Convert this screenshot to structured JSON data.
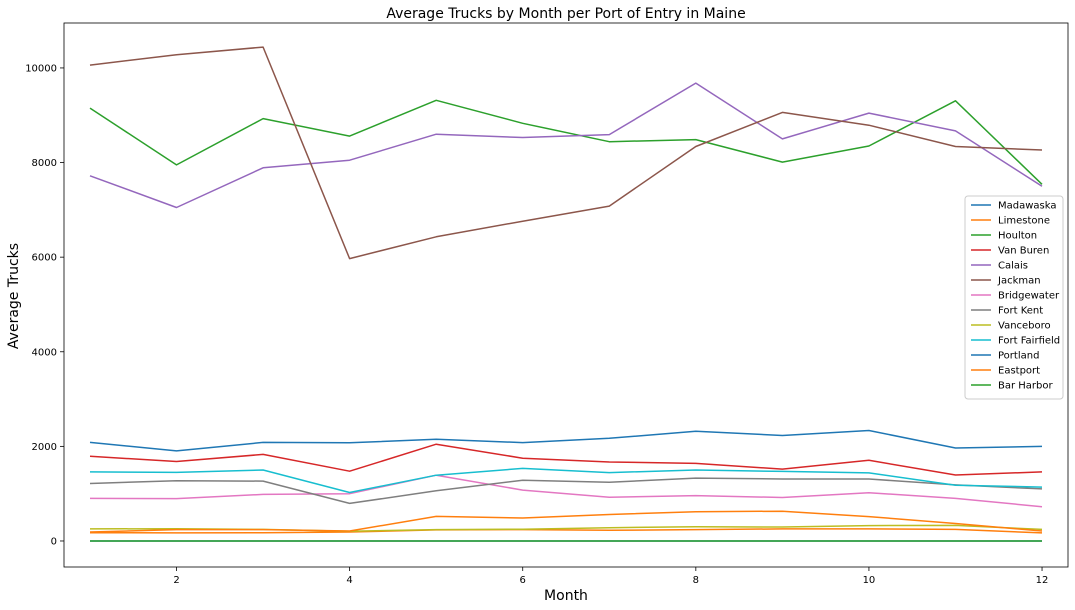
{
  "chart_data": {
    "type": "line",
    "title": "Average Trucks by Month per Port of Entry in Maine",
    "xlabel": "Month",
    "ylabel": "Average Trucks",
    "xlim": [
      0.7,
      12.3
    ],
    "ylim": [
      -550,
      10950
    ],
    "xticks": [
      2,
      4,
      6,
      8,
      10,
      12
    ],
    "yticks": [
      0,
      2000,
      4000,
      6000,
      8000,
      10000
    ],
    "grid": false,
    "legend_position": "center-right",
    "x": [
      1,
      2,
      3,
      4,
      5,
      6,
      7,
      8,
      9,
      10,
      11,
      12
    ],
    "series": [
      {
        "name": "Madawaska",
        "color": "#1f77b4",
        "values": [
          2085,
          1905,
          2085,
          2075,
          2150,
          2080,
          2170,
          2320,
          2230,
          2335,
          1965,
          2000
        ]
      },
      {
        "name": "Limestone",
        "color": "#ff7f0e",
        "values": [
          175,
          170,
          175,
          190,
          235,
          240,
          225,
          240,
          255,
          255,
          245,
          170
        ]
      },
      {
        "name": "Houlton",
        "color": "#2ca02c",
        "values": [
          9150,
          7950,
          8930,
          8560,
          9315,
          8830,
          8440,
          8485,
          8010,
          8350,
          9305,
          7540
        ]
      },
      {
        "name": "Van Buren",
        "color": "#d62728",
        "values": [
          1790,
          1680,
          1830,
          1475,
          2045,
          1750,
          1670,
          1640,
          1520,
          1705,
          1395,
          1460
        ]
      },
      {
        "name": "Calais",
        "color": "#9467bd",
        "values": [
          7720,
          7050,
          7890,
          8050,
          8600,
          8530,
          8590,
          9680,
          8500,
          9045,
          8670,
          7500
        ]
      },
      {
        "name": "Jackman",
        "color": "#8c564b",
        "values": [
          10060,
          10280,
          10440,
          5970,
          6430,
          6760,
          7080,
          8340,
          9060,
          8790,
          8340,
          8265
        ]
      },
      {
        "name": "Bridgewater",
        "color": "#e377c2",
        "values": [
          900,
          895,
          985,
          1000,
          1390,
          1075,
          925,
          960,
          920,
          1020,
          900,
          725
        ]
      },
      {
        "name": "Fort Kent",
        "color": "#7f7f7f",
        "values": [
          1215,
          1275,
          1265,
          795,
          1060,
          1285,
          1240,
          1330,
          1310,
          1310,
          1185,
          1100
        ]
      },
      {
        "name": "Vanceboro",
        "color": "#bcbd22",
        "values": [
          255,
          260,
          245,
          205,
          240,
          250,
          280,
          300,
          295,
          325,
          330,
          245
        ]
      },
      {
        "name": "Fort Fairfield",
        "color": "#17becf",
        "values": [
          1460,
          1450,
          1500,
          1025,
          1390,
          1535,
          1445,
          1500,
          1470,
          1440,
          1180,
          1140
        ]
      },
      {
        "name": "Portland",
        "color": "#1f77b4",
        "values": [
          0,
          0,
          0,
          0,
          0,
          0,
          0,
          0,
          0,
          0,
          0,
          0
        ]
      },
      {
        "name": "Eastport",
        "color": "#ff7f0e",
        "values": [
          190,
          240,
          240,
          210,
          520,
          485,
          560,
          620,
          630,
          515,
          370,
          210
        ]
      },
      {
        "name": "Bar Harbor",
        "color": "#2ca02c",
        "values": [
          0,
          0,
          0,
          0,
          0,
          0,
          0,
          0,
          0,
          0,
          0,
          0
        ]
      }
    ]
  }
}
